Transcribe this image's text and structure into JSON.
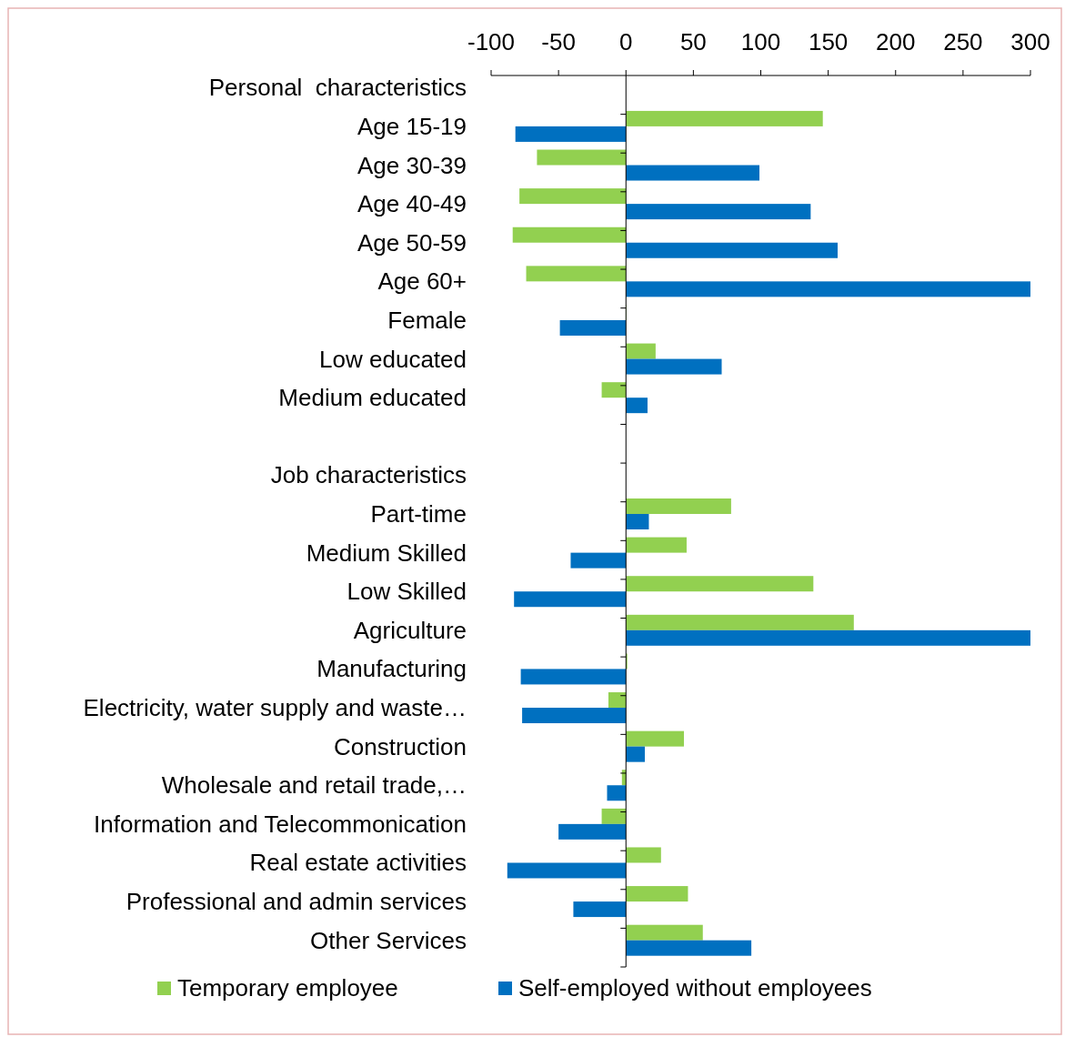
{
  "chart_data": {
    "type": "bar",
    "orientation": "horizontal",
    "categories": [
      "Personal  characteristics",
      "Age 15-19",
      "Age 30-39",
      "Age 40-49",
      "Age 50-59",
      "Age 60+",
      "Female",
      "Low educated",
      "Medium educated",
      null,
      "Job characteristics",
      "Part-time",
      "Medium Skilled",
      "Low Skilled",
      "Agriculture",
      "Manufacturing",
      "Electricity, water supply and waste…",
      "Construction",
      "Wholesale and retail trade,…",
      "Information and Telecommonication",
      "Real estate activities",
      "Professional and admin services",
      "Other Services"
    ],
    "series": [
      {
        "name": "Temporary employee",
        "color": "#92d050",
        "values": [
          null,
          146,
          -66,
          -79,
          -84,
          -74,
          0,
          22,
          -18,
          null,
          null,
          78,
          45,
          139,
          169,
          1,
          -13,
          43,
          -3,
          -18,
          26,
          46,
          57
        ]
      },
      {
        "name": "Self-employed without employees",
        "color": "#0070c0",
        "values": [
          null,
          -82,
          99,
          137,
          157,
          300,
          -49,
          71,
          16,
          null,
          null,
          17,
          -41,
          -83,
          300,
          -78,
          -77,
          14,
          -14,
          -50,
          -88,
          -39,
          93
        ]
      }
    ],
    "xlim": [
      -100,
      300
    ],
    "xticks": [
      -100,
      -50,
      0,
      50,
      100,
      150,
      200,
      250,
      300
    ],
    "legend": "bottom"
  }
}
